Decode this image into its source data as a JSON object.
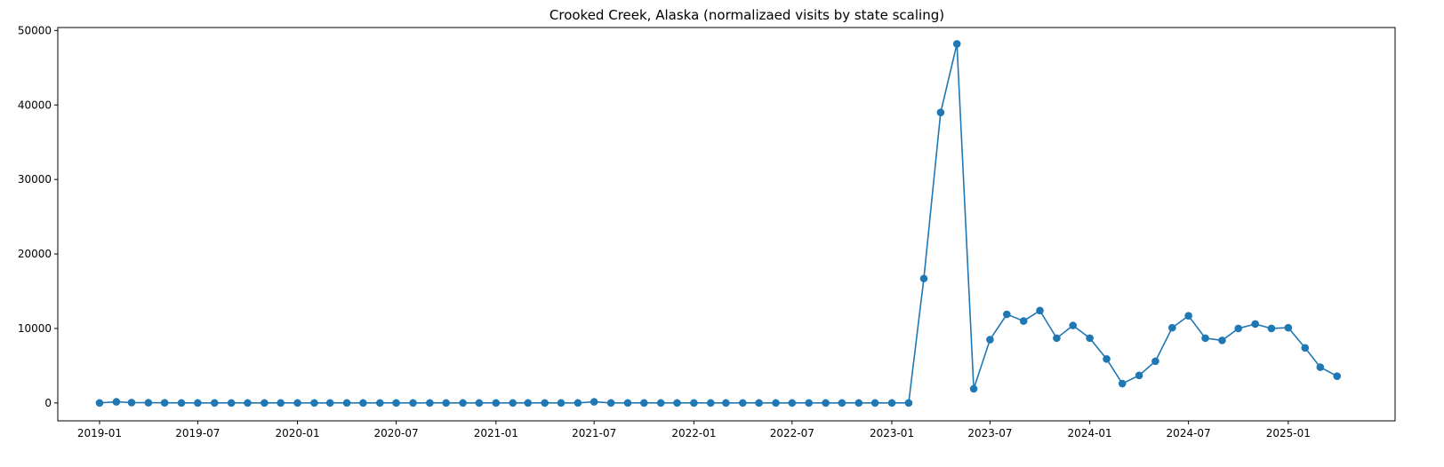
{
  "chart_data": {
    "type": "line",
    "title": "Crooked Creek, Alaska (normalizaed visits by state scaling)",
    "xlabel": "",
    "ylabel": "",
    "ylim": [
      -2400,
      50400
    ],
    "xlim": [
      "2018-10-16",
      "2025-07-17"
    ],
    "grid": false,
    "legend": "none",
    "colors": {
      "series": "#1f77b4",
      "axes": "#000000"
    },
    "x_ticks": [
      "2019-01",
      "2019-07",
      "2020-01",
      "2020-07",
      "2021-01",
      "2021-07",
      "2022-01",
      "2022-07",
      "2023-01",
      "2023-07",
      "2024-01",
      "2024-07",
      "2025-01"
    ],
    "y_ticks": [
      0,
      10000,
      20000,
      30000,
      40000,
      50000
    ],
    "x": [
      "2019-01",
      "2019-02",
      "2019-03",
      "2019-04",
      "2019-05",
      "2019-06",
      "2019-07",
      "2019-08",
      "2019-09",
      "2019-10",
      "2019-11",
      "2019-12",
      "2020-01",
      "2020-02",
      "2020-03",
      "2020-04",
      "2020-05",
      "2020-06",
      "2020-07",
      "2020-08",
      "2020-09",
      "2020-10",
      "2020-11",
      "2020-12",
      "2021-01",
      "2021-02",
      "2021-03",
      "2021-04",
      "2021-05",
      "2021-06",
      "2021-07",
      "2021-08",
      "2021-09",
      "2021-10",
      "2021-11",
      "2021-12",
      "2022-01",
      "2022-02",
      "2022-03",
      "2022-04",
      "2022-05",
      "2022-06",
      "2022-07",
      "2022-08",
      "2022-09",
      "2022-10",
      "2022-11",
      "2022-12",
      "2023-01",
      "2023-02",
      "2023-03",
      "2023-04",
      "2023-05",
      "2023-06",
      "2023-07",
      "2023-08",
      "2023-09",
      "2023-10",
      "2023-11",
      "2023-12",
      "2024-01",
      "2024-02",
      "2024-03",
      "2024-04",
      "2024-05",
      "2024-06",
      "2024-07",
      "2024-08",
      "2024-09",
      "2024-10",
      "2024-11",
      "2024-12",
      "2025-01",
      "2025-02",
      "2025-03",
      "2025-04"
    ],
    "series": [
      {
        "values": [
          0,
          150,
          50,
          30,
          20,
          0,
          0,
          0,
          0,
          0,
          0,
          0,
          0,
          0,
          0,
          0,
          0,
          0,
          0,
          0,
          0,
          0,
          0,
          0,
          0,
          0,
          0,
          0,
          0,
          0,
          150,
          0,
          0,
          0,
          0,
          0,
          0,
          0,
          0,
          0,
          0,
          0,
          0,
          0,
          0,
          0,
          0,
          0,
          0,
          0,
          16700,
          39000,
          48200,
          1900,
          8500,
          11900,
          11000,
          12400,
          8700,
          10400,
          8700,
          5900,
          2600,
          3700,
          5600,
          10100,
          11700,
          8700,
          8400,
          10000,
          10600,
          10000,
          10100,
          7400,
          4800,
          3600
        ]
      }
    ]
  }
}
